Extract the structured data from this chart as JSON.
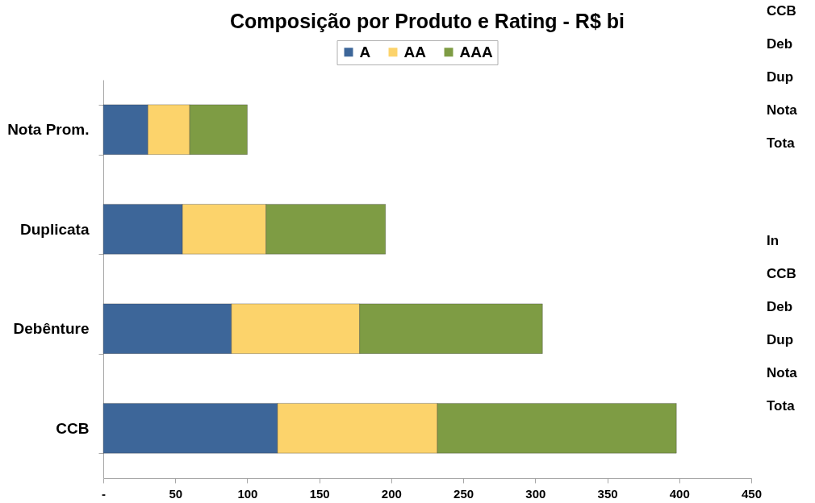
{
  "chart_data": [
    {
      "type": "bar",
      "orientation": "horizontal",
      "stacked": true,
      "title": "Composição por Produto e Rating - R$ bi",
      "categories": [
        "Nota Prom.",
        "Duplicata",
        "Debênture",
        "CCB"
      ],
      "series": [
        {
          "name": "A",
          "color": "#3d6699",
          "values": [
            31,
            55,
            89,
            121
          ]
        },
        {
          "name": "AA",
          "color": "#fcd36b",
          "values": [
            29,
            58,
            89,
            111
          ]
        },
        {
          "name": "AAA",
          "color": "#7e9c44",
          "values": [
            40,
            83,
            127,
            166
          ]
        }
      ],
      "xlim": [
        0,
        450
      ],
      "xticks": [
        {
          "value": 0,
          "label": "-"
        },
        50,
        100,
        150,
        200,
        250,
        300,
        350,
        400,
        450
      ],
      "legend": "top",
      "grid": false
    },
    {
      "type": "other",
      "annotations": [
        "CCB",
        "Deb",
        "Dup",
        "Nota",
        "Tota"
      ]
    },
    {
      "type": "other",
      "annotations": [
        "In",
        "CCB",
        "Deb",
        "Dup",
        "Nota",
        "Tota"
      ]
    }
  ]
}
